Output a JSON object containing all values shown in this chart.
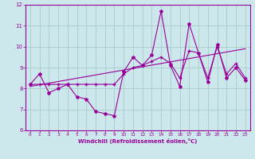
{
  "xlabel": "Windchill (Refroidissement éolien,°C)",
  "xlim": [
    -0.5,
    23.5
  ],
  "ylim": [
    6,
    12
  ],
  "yticks": [
    6,
    7,
    8,
    9,
    10,
    11,
    12
  ],
  "xticks": [
    0,
    1,
    2,
    3,
    4,
    5,
    6,
    7,
    8,
    9,
    10,
    11,
    12,
    13,
    14,
    15,
    16,
    17,
    18,
    19,
    20,
    21,
    22,
    23
  ],
  "bg_color": "#cce8ec",
  "line_color": "#990099",
  "grid_color": "#aacccc",
  "series1_x": [
    0,
    1,
    2,
    3,
    4,
    5,
    6,
    7,
    8,
    9,
    10,
    11,
    12,
    13,
    14,
    15,
    16,
    17,
    18,
    19,
    20,
    21,
    22,
    23
  ],
  "series1_y": [
    8.2,
    8.7,
    7.8,
    8.0,
    8.2,
    7.6,
    7.5,
    6.9,
    6.8,
    6.7,
    8.8,
    9.5,
    9.1,
    9.6,
    11.7,
    9.1,
    8.1,
    11.1,
    9.7,
    8.3,
    10.1,
    8.5,
    9.0,
    8.4
  ],
  "series2_x": [
    0,
    23
  ],
  "series2_y": [
    8.1,
    9.9
  ],
  "series3_x": [
    0,
    1,
    2,
    3,
    4,
    5,
    6,
    7,
    8,
    9,
    10,
    11,
    12,
    13,
    14,
    15,
    16,
    17,
    18,
    19,
    20,
    21,
    22,
    23
  ],
  "series3_y": [
    8.2,
    8.2,
    8.2,
    8.2,
    8.2,
    8.2,
    8.2,
    8.2,
    8.2,
    8.2,
    8.7,
    9.0,
    9.1,
    9.3,
    9.5,
    9.2,
    8.5,
    9.8,
    9.7,
    8.5,
    10.0,
    8.7,
    9.2,
    8.5
  ]
}
